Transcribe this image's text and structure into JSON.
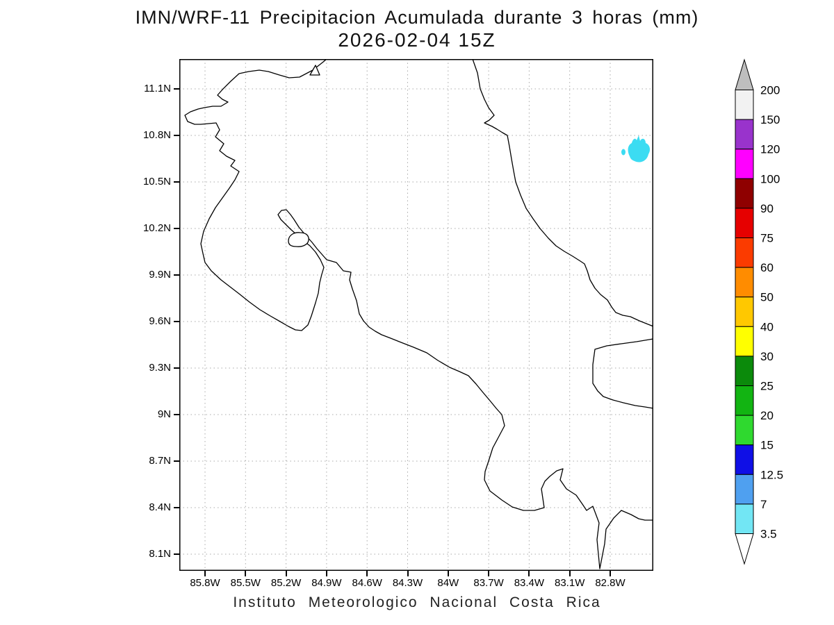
{
  "title": {
    "line1": "IMN/WRF-11 Precipitacion Acumulada durante 3 horas (mm)",
    "line2": "2026-02-04 15Z"
  },
  "footer": {
    "text": "Instituto Meteorologico Nacional Costa Rica"
  },
  "axes": {
    "lat_labels": [
      "11.1N",
      "10.8N",
      "10.5N",
      "10.2N",
      "9.9N",
      "9.6N",
      "9.3N",
      "9N",
      "8.7N",
      "8.4N",
      "8.1N"
    ],
    "lon_labels": [
      "85.8W",
      "85.5W",
      "85.2W",
      "84.9W",
      "84.6W",
      "84.3W",
      "84W",
      "83.7W",
      "83.4W",
      "83.1W",
      "82.8W"
    ]
  },
  "colorbar": {
    "tick_labels_bottom_to_top": [
      "3.5",
      "7",
      "12.5",
      "15",
      "20",
      "25",
      "30",
      "40",
      "50",
      "60",
      "75",
      "90",
      "100",
      "120",
      "150",
      "200"
    ],
    "box_colors_bottom_to_top": [
      "#72E6F4",
      "#4FA0F0",
      "#0F0FE6",
      "#2FD92F",
      "#12B412",
      "#0B8A0B",
      "#FFFF00",
      "#FFC800",
      "#FF8C00",
      "#FB3B00",
      "#E60000",
      "#8F0000",
      "#FF00FF",
      "#9933CC",
      "#F2F2F2"
    ],
    "above_max_color": "#BEBEBE",
    "below_min_color": "#FFFFFF"
  },
  "map": {
    "region": "Costa Rica coastline",
    "precip_patch_color": "#3CDCF2",
    "coastline_color": "#000000"
  },
  "colors": {
    "background": "#FFFFFF",
    "grid": "#A8A8A8",
    "frame": "#000000"
  }
}
